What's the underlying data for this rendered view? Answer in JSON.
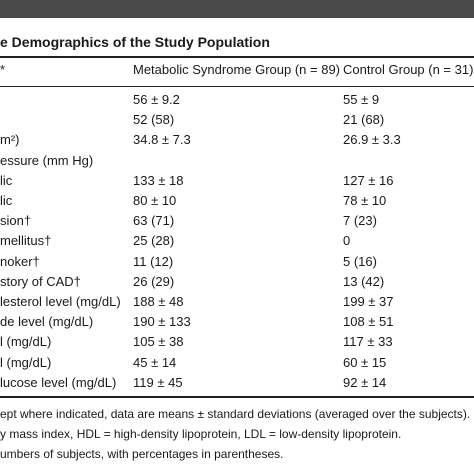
{
  "header": {
    "title": "e Demographics of the Study Population"
  },
  "table": {
    "columns": [
      "*",
      "Metabolic Syndrome Group (n = 89)",
      "Control Group (n = 31)"
    ],
    "rows": [
      [
        null,
        "56 ± 9.2",
        "55 ± 9"
      ],
      [
        null,
        "52 (58)",
        "21 (68)"
      ],
      [
        "m²)",
        "34.8 ± 7.3",
        "26.9 ± 3.3"
      ],
      [
        "essure (mm Hg)",
        null,
        null
      ],
      [
        "lic",
        "133 ± 18",
        "127 ± 16"
      ],
      [
        "lic",
        "80 ± 10",
        "78 ± 10"
      ],
      [
        "sion†",
        "63 (71)",
        "7 (23)"
      ],
      [
        "mellitus†",
        "25 (28)",
        "0"
      ],
      [
        "noker†",
        "11 (12)",
        "5 (16)"
      ],
      [
        "story of CAD†",
        "26 (29)",
        "13 (42)"
      ],
      [
        "lesterol level (mg/dL)",
        "188 ± 48",
        "199 ± 37"
      ],
      [
        "de level (mg/dL)",
        "190 ± 133",
        "108 ± 51"
      ],
      [
        "l (mg/dL)",
        "105 ± 38",
        "117 ± 33"
      ],
      [
        "l (mg/dL)",
        "45 ± 14",
        "60 ± 15"
      ],
      [
        "lucose level (mg/dL)",
        "119 ± 45",
        "92 ± 14"
      ]
    ]
  },
  "footnotes": [
    "ept where indicated, data are means ± standard deviations (averaged over the subjects).",
    "y mass index, HDL = high-density lipoprotein, LDL = low-density lipoprotein.",
    "umbers of subjects, with percentages in parentheses."
  ]
}
